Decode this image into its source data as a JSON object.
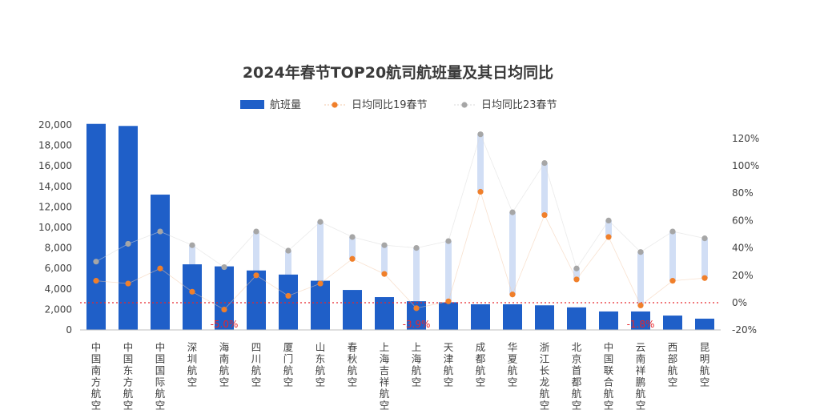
{
  "chart_data": {
    "type": "bar",
    "title": "2024年春节TOP20航司航班量及其日均同比",
    "categories": [
      "中国南方航空",
      "中国东方航空",
      "中国国际航空",
      "深圳航空",
      "海南航空",
      "四川航空",
      "厦门航空",
      "山东航空",
      "春秋航空",
      "上海吉祥航空",
      "上海航空",
      "天津航空",
      "成都航空",
      "华夏航空",
      "浙江长龙航空",
      "北京首都航空",
      "中国联合航空",
      "云南祥鹏航空",
      "西部航空",
      "昆明航空"
    ],
    "series": [
      {
        "name": "航班量",
        "kind": "bar",
        "axis": "left",
        "color": "#1f5fc8",
        "values": [
          20100,
          19900,
          13200,
          6400,
          6200,
          5800,
          5400,
          4800,
          3900,
          3200,
          2800,
          2700,
          2500,
          2500,
          2400,
          2200,
          1800,
          1800,
          1400,
          1100
        ]
      },
      {
        "name": "日均同比19春节",
        "kind": "point",
        "axis": "right",
        "color": "#f07f2a",
        "values": [
          16,
          14,
          25,
          8,
          -5,
          20,
          5,
          14,
          32,
          21,
          -4,
          1,
          81,
          6,
          64,
          17,
          48,
          -2,
          16,
          18
        ]
      },
      {
        "name": "日均同比23春节",
        "kind": "point",
        "axis": "right",
        "color": "#a6a6a6",
        "values": [
          30,
          43,
          52,
          42,
          26,
          52,
          38,
          59,
          48,
          42,
          40,
          45,
          123,
          66,
          102,
          25,
          60,
          37,
          52,
          47
        ]
      }
    ],
    "y_left": {
      "min": 0,
      "max": 20000,
      "step": 2000,
      "ticks": [
        "0",
        "2,000",
        "4,000",
        "6,000",
        "8,000",
        "10,000",
        "12,000",
        "14,000",
        "16,000",
        "18,000",
        "20,000"
      ]
    },
    "y_right": {
      "min": -20,
      "max": 130,
      "step": 20,
      "ticks": [
        "-20%",
        "0%",
        "20%",
        "40%",
        "60%",
        "80%",
        "100%",
        "120%"
      ]
    },
    "zero_line_color": "#e8262a",
    "annotations": [
      {
        "category": "海南航空",
        "text": "-5.0%"
      },
      {
        "category": "上海航空",
        "text": "-3.9%"
      },
      {
        "category": "云南祥鹏航空",
        "text": "-1.8%"
      }
    ],
    "legend_position": "top-center",
    "grid": false
  }
}
